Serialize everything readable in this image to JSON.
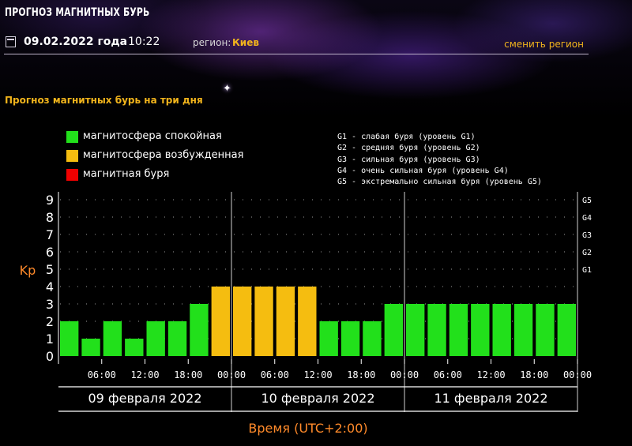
{
  "header": {
    "title": "ПРОГНОЗ МАГНИТНЫХ БУРЬ",
    "date": "09.02.2022 года",
    "time": "10:22",
    "region_label": "регион:",
    "region_value": "Киев",
    "change_region": "сменить регион"
  },
  "section_title": "Прогноз магнитных бурь на три дня",
  "legend": [
    {
      "label": "магнитосфера спокойная",
      "color": "#22e01b"
    },
    {
      "label": "магнитосфера возбужденная",
      "color": "#f5bd10"
    },
    {
      "label": "магнитная буря",
      "color": "#f00000"
    }
  ],
  "storm_levels": [
    "G1 - слабая буря (уровень G1)",
    "G2 - средняя буря (уровень G2)",
    "G3 - сильная буря (уровень G3)",
    "G4 - очень сильная буря (уровень G4)",
    "G5 - экстремально сильная буря (уровень G5)"
  ],
  "colors": {
    "quiet": "#22e01b",
    "excited": "#f5bd10",
    "storm": "#f00000",
    "accent": "#f2b41c",
    "axis_label": "#ff8a2a"
  },
  "chart_data": {
    "type": "bar",
    "ylabel": "Kp",
    "xlabel": "Время (UTC+2:00)",
    "ylim": [
      0,
      9
    ],
    "y_ticks": [
      0,
      1,
      2,
      3,
      4,
      5,
      6,
      7,
      8,
      9
    ],
    "right_axis_labels": [
      {
        "kp": 5,
        "label": "G1"
      },
      {
        "kp": 6,
        "label": "G2"
      },
      {
        "kp": 7,
        "label": "G3"
      },
      {
        "kp": 8,
        "label": "G4"
      },
      {
        "kp": 9,
        "label": "G5"
      }
    ],
    "time_ticks": [
      "06:00",
      "12:00",
      "18:00",
      "00:00",
      "06:00",
      "12:00",
      "18:00",
      "00:00",
      "06:00",
      "12:00",
      "18:00",
      "00:00"
    ],
    "days": [
      "09 февраля 2022",
      "10 февраля 2022",
      "11 февраля 2022"
    ],
    "values": [
      2,
      1,
      2,
      1,
      2,
      2,
      3,
      4,
      4,
      4,
      4,
      4,
      2,
      2,
      2,
      3,
      3,
      3,
      3,
      3,
      3,
      3,
      3,
      3
    ],
    "grid": true
  }
}
